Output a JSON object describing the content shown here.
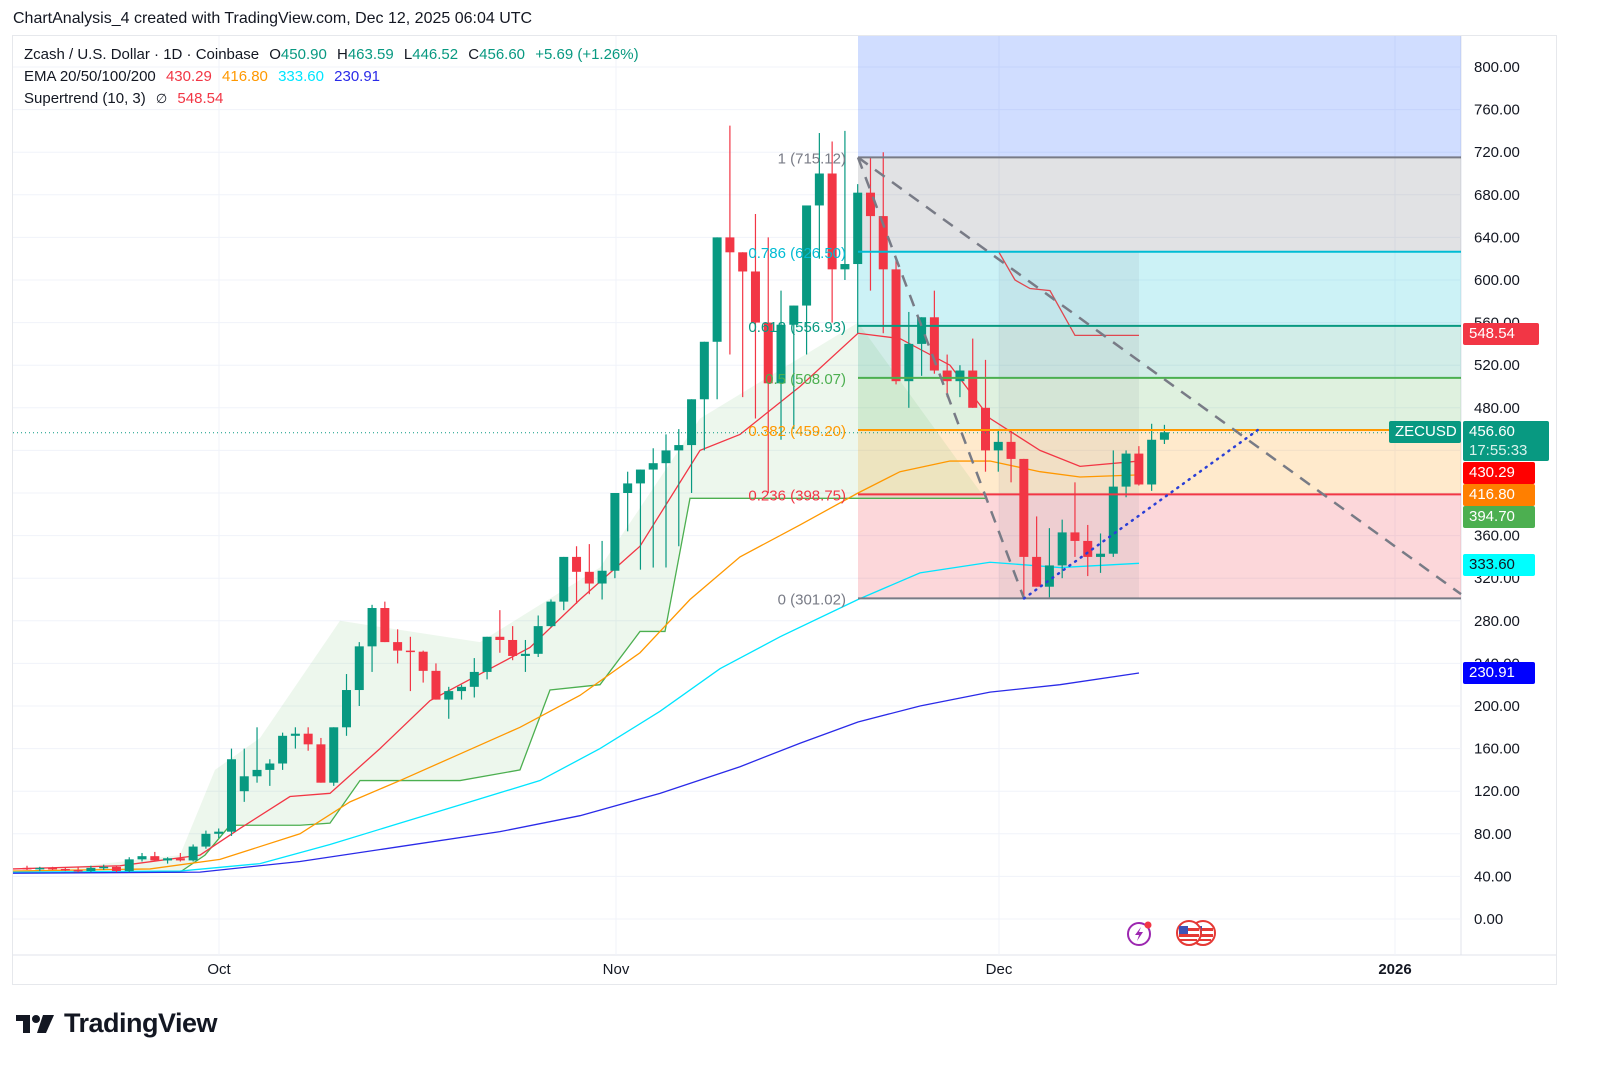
{
  "caption": "ChartAnalysis_4 created with TradingView.com, Dec 12, 2025 06:04 UTC",
  "legend": {
    "symbol_title": "Zcash / U.S. Dollar · 1D · Coinbase",
    "open_label": "O",
    "open": "450.90",
    "high_label": "H",
    "high": "463.59",
    "low_label": "L",
    "low": "446.52",
    "close_label": "C",
    "close": "456.60",
    "change": "+5.69 (+1.26%)",
    "ema_title": "EMA 20/50/100/200",
    "ema20": "430.29",
    "ema50": "416.80",
    "ema100": "333.60",
    "ema200": "230.91",
    "supertrend_title": "Supertrend (10, 3)",
    "supertrend_icon": "∅",
    "supertrend_value": "548.54"
  },
  "colors": {
    "up": "#089981",
    "down": "#f23645",
    "ema20": "#f23645",
    "ema50": "#ff9800",
    "ema100": "#00e5ff",
    "ema200": "#2a2ae8",
    "supertrend_up": "#4caf50",
    "supertrend_down": "#e0474f"
  },
  "price_tags": {
    "symbol": "ZECUSD",
    "last_price": "456.60",
    "countdown": "17:55:33",
    "ema20": "430.29",
    "ema50": "416.80",
    "supertrend_up": "394.70",
    "ema100": "333.60",
    "ema200": "230.91",
    "supertrend_down": "548.54"
  },
  "footer": {
    "brand": "TradingView"
  },
  "chart_data": {
    "type": "candlestick",
    "title": "Zcash / U.S. Dollar · 1D · Coinbase",
    "y_ticks": [
      "800.00",
      "760.00",
      "720.00",
      "680.00",
      "640.00",
      "600.00",
      "560.00",
      "520.00",
      "480.00",
      "440.00",
      "400.00",
      "360.00",
      "320.00",
      "280.00",
      "240.00",
      "200.00",
      "160.00",
      "120.00",
      "80.00",
      "40.00",
      "0.00"
    ],
    "y_tick_values": [
      800,
      760,
      720,
      680,
      640,
      600,
      560,
      520,
      480,
      440,
      400,
      360,
      320,
      280,
      240,
      200,
      160,
      120,
      80,
      40,
      0
    ],
    "x_ticks": [
      "Oct",
      "Nov",
      "Dec",
      "2026"
    ],
    "ylim": [
      -50,
      830
    ],
    "grid": true,
    "fib_retracement": {
      "levels": [
        {
          "ratio": "1",
          "price": 715.12,
          "label": "1 (715.12)",
          "color": "#787b86"
        },
        {
          "ratio": "0.786",
          "price": 626.5,
          "label": "0.786 (626.50)",
          "color": "#00bcd4"
        },
        {
          "ratio": "0.618",
          "price": 556.93,
          "label": "0.618 (556.93)",
          "color": "#089981"
        },
        {
          "ratio": "0.5",
          "price": 508.07,
          "label": "0.5 (508.07)",
          "color": "#4caf50"
        },
        {
          "ratio": "0.382",
          "price": 459.2,
          "label": "0.382 (459.20)",
          "color": "#ff9800"
        },
        {
          "ratio": "0.236",
          "price": 398.75,
          "label": "0.236 (398.75)",
          "color": "#f23645"
        },
        {
          "ratio": "0",
          "price": 301.02,
          "label": "0 (301.02)",
          "color": "#787b86"
        }
      ]
    },
    "candles_ohlc": [
      [
        48,
        50,
        46,
        47
      ],
      [
        47,
        49,
        45,
        48
      ],
      [
        48,
        49,
        46,
        47
      ],
      [
        47,
        48,
        45,
        46
      ],
      [
        46,
        49,
        44,
        45
      ],
      [
        45,
        50,
        44,
        48
      ],
      [
        48,
        51,
        46,
        49
      ],
      [
        49,
        50,
        44,
        45
      ],
      [
        45,
        58,
        44,
        56
      ],
      [
        56,
        62,
        54,
        59
      ],
      [
        59,
        63,
        54,
        55
      ],
      [
        55,
        58,
        52,
        57
      ],
      [
        57,
        62,
        54,
        55
      ],
      [
        55,
        70,
        54,
        68
      ],
      [
        68,
        83,
        66,
        80
      ],
      [
        80,
        85,
        76,
        82
      ],
      [
        82,
        160,
        78,
        150
      ],
      [
        120,
        160,
        110,
        134
      ],
      [
        134,
        180,
        128,
        140
      ],
      [
        140,
        150,
        125,
        146
      ],
      [
        146,
        175,
        140,
        172
      ],
      [
        172,
        180,
        160,
        174
      ],
      [
        174,
        180,
        158,
        164
      ],
      [
        164,
        170,
        130,
        128
      ],
      [
        128,
        180,
        125,
        180
      ],
      [
        180,
        230,
        172,
        215
      ],
      [
        215,
        260,
        200,
        256
      ],
      [
        256,
        295,
        232,
        292
      ],
      [
        292,
        298,
        260,
        260
      ],
      [
        260,
        272,
        240,
        252
      ],
      [
        252,
        265,
        214,
        251
      ],
      [
        251,
        252,
        222,
        233
      ],
      [
        233,
        240,
        210,
        206
      ],
      [
        206,
        218,
        188,
        214
      ],
      [
        214,
        220,
        206,
        218
      ],
      [
        218,
        245,
        208,
        232
      ],
      [
        232,
        265,
        225,
        265
      ],
      [
        265,
        290,
        250,
        262
      ],
      [
        262,
        275,
        243,
        247
      ],
      [
        247,
        262,
        232,
        249
      ],
      [
        249,
        285,
        246,
        275
      ],
      [
        275,
        300,
        274,
        298
      ],
      [
        298,
        332,
        290,
        340
      ],
      [
        340,
        350,
        296,
        326
      ],
      [
        326,
        352,
        305,
        315
      ],
      [
        315,
        355,
        300,
        327
      ],
      [
        327,
        380,
        320,
        400
      ],
      [
        400,
        420,
        364,
        409
      ],
      [
        409,
        405,
        328,
        422
      ],
      [
        422,
        442,
        330,
        428
      ],
      [
        428,
        455,
        330,
        440
      ],
      [
        440,
        460,
        350,
        445
      ],
      [
        445,
        480,
        400,
        488
      ],
      [
        488,
        500,
        440,
        542
      ],
      [
        542,
        560,
        488,
        640
      ],
      [
        640,
        745,
        530,
        626
      ],
      [
        626,
        602,
        490,
        608
      ],
      [
        608,
        662,
        470,
        560
      ],
      [
        560,
        640,
        400,
        503
      ],
      [
        503,
        590,
        450,
        558
      ],
      [
        558,
        575,
        460,
        576
      ],
      [
        576,
        602,
        530,
        670
      ],
      [
        670,
        738,
        620,
        700
      ],
      [
        700,
        730,
        560,
        610
      ],
      [
        610,
        740,
        600,
        615
      ],
      [
        615,
        690,
        550,
        682
      ],
      [
        682,
        715,
        590,
        660
      ],
      [
        660,
        720,
        550,
        610
      ],
      [
        610,
        620,
        502,
        505
      ],
      [
        505,
        570,
        480,
        540
      ],
      [
        540,
        565,
        510,
        565
      ],
      [
        565,
        590,
        512,
        515
      ],
      [
        515,
        530,
        490,
        505
      ],
      [
        505,
        520,
        490,
        515
      ],
      [
        515,
        545,
        480,
        480
      ],
      [
        480,
        525,
        420,
        440
      ],
      [
        440,
        460,
        420,
        448
      ],
      [
        448,
        460,
        410,
        432
      ],
      [
        432,
        400,
        300,
        340
      ],
      [
        340,
        378,
        315,
        312
      ],
      [
        312,
        367,
        302,
        332
      ],
      [
        332,
        375,
        320,
        363
      ],
      [
        363,
        410,
        340,
        355
      ],
      [
        355,
        370,
        322,
        340
      ],
      [
        340,
        362,
        325,
        343
      ],
      [
        343,
        440,
        340,
        406
      ],
      [
        406,
        440,
        396,
        437
      ],
      [
        437,
        444,
        407,
        408
      ],
      [
        408,
        465,
        402,
        450
      ],
      [
        450,
        464,
        446,
        457
      ]
    ]
  }
}
